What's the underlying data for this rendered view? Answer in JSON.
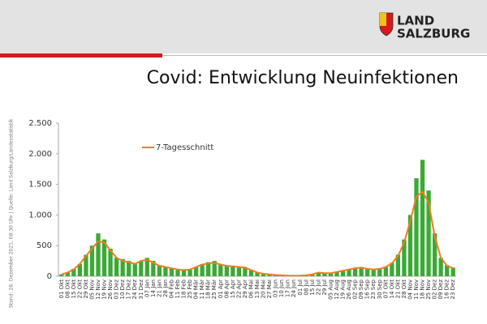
{
  "header": {
    "logo_line1": "LAND",
    "logo_line2": "SALZBURG"
  },
  "side_note": "Stand: 28. Dezember 2021, 08:30 Uhr | Quelle: Land Salzburg/Landesstatistik",
  "chart_data": {
    "type": "bar",
    "title": "Covid: Entwicklung Neuinfektionen",
    "categories": [
      "01 Okt",
      "08 Okt",
      "15 Okt",
      "22 Okt",
      "29 Okt",
      "05 Nov",
      "12 Nov",
      "19 Nov",
      "26 Nov",
      "03 Dez",
      "10 Dez",
      "17 Dez",
      "24 Dez",
      "31 Dez",
      "07 Jan",
      "14 Jan",
      "21 Jan",
      "28 Jan",
      "04 Feb",
      "11 Feb",
      "18 Feb",
      "25 Feb",
      "04 Mär",
      "11 Mär",
      "18 Mär",
      "25 Mär",
      "01 Apr",
      "08 Apr",
      "15 Apr",
      "22 Apr",
      "29 Apr",
      "06 Mai",
      "13 Mai",
      "20 Mai",
      "27 Mai",
      "03 Jun",
      "10 Jun",
      "17 Jun",
      "24 Jun",
      "01 Jul",
      "08 Jul",
      "15 Jul",
      "22 Jul",
      "29 Jul",
      "05 Aug",
      "12 Aug",
      "19 Aug",
      "26 Aug",
      "02 Sep",
      "09 Sep",
      "16 Sep",
      "23 Sep",
      "30 Sep",
      "07 Okt",
      "14 Okt",
      "21 Okt",
      "28 Okt",
      "04 Nov",
      "11 Nov",
      "18 Nov",
      "25 Nov",
      "02 Dez",
      "09 Dez",
      "16 Dez",
      "23 Dez"
    ],
    "values": [
      30,
      60,
      120,
      200,
      350,
      500,
      700,
      600,
      450,
      300,
      280,
      250,
      200,
      250,
      300,
      250,
      180,
      150,
      130,
      120,
      100,
      110,
      150,
      200,
      230,
      250,
      200,
      180,
      170,
      160,
      150,
      100,
      60,
      40,
      30,
      20,
      15,
      10,
      8,
      10,
      15,
      30,
      60,
      50,
      50,
      70,
      100,
      120,
      140,
      150,
      130,
      110,
      130,
      150,
      220,
      350,
      600,
      1000,
      1600,
      1900,
      1400,
      700,
      300,
      180,
      140
    ],
    "color": "#3aaa35",
    "line": {
      "name": "7-Tagesschnitt",
      "color": "#ee7d22",
      "values": [
        30,
        60,
        110,
        200,
        330,
        450,
        570,
        550,
        420,
        300,
        250,
        230,
        200,
        250,
        270,
        220,
        170,
        150,
        130,
        110,
        100,
        110,
        150,
        190,
        210,
        220,
        190,
        170,
        160,
        150,
        140,
        100,
        60,
        40,
        30,
        20,
        15,
        10,
        8,
        10,
        15,
        30,
        60,
        50,
        50,
        70,
        90,
        110,
        130,
        140,
        120,
        110,
        120,
        150,
        210,
        330,
        550,
        900,
        1300,
        1380,
        1200,
        650,
        300,
        170,
        130
      ]
    },
    "ylim": [
      0,
      2500
    ],
    "yticks": [
      0,
      {
        "value": 500,
        "label": "500"
      },
      {
        "value": 1000,
        "label": "1.000"
      },
      {
        "value": 1500,
        "label": "1.500"
      },
      {
        "value": 2000,
        "label": "2.000"
      },
      {
        "value": 2500,
        "label": "2.500"
      }
    ]
  }
}
